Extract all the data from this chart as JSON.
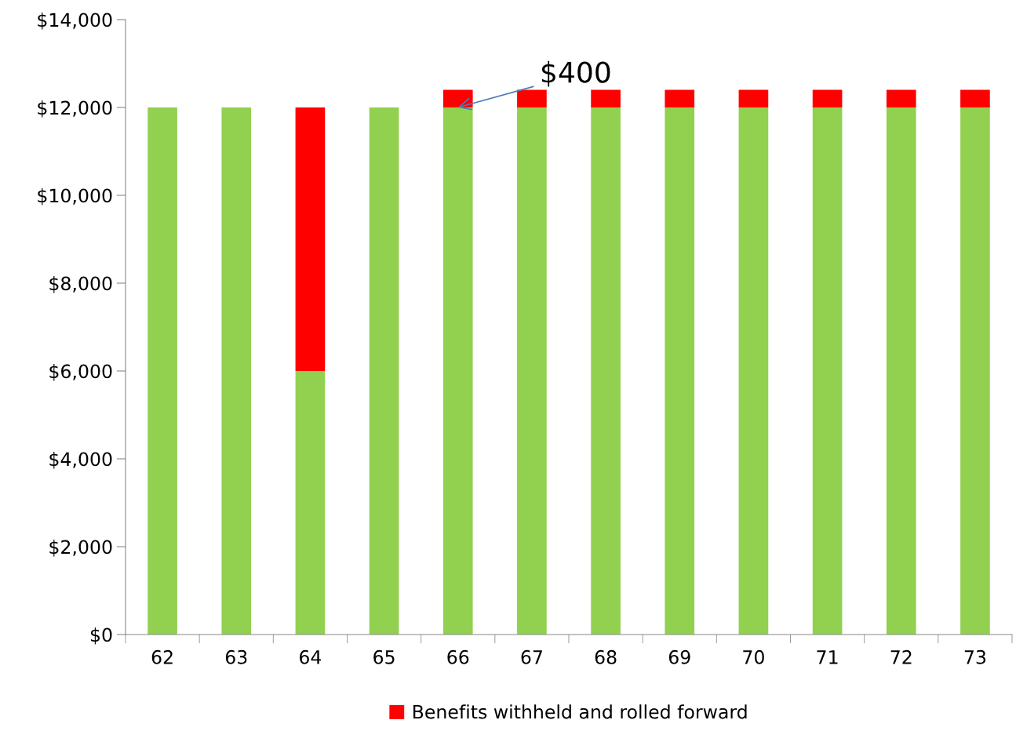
{
  "chart_data": {
    "type": "bar",
    "stacked": true,
    "categories": [
      "62",
      "63",
      "64",
      "65",
      "66",
      "67",
      "68",
      "69",
      "70",
      "71",
      "72",
      "73"
    ],
    "series": [
      {
        "color": "#92d050",
        "values": [
          12000,
          12000,
          6000,
          12000,
          12000,
          12000,
          12000,
          12000,
          12000,
          12000,
          12000,
          12000
        ]
      },
      {
        "name": "Benefits withheld and rolled forward",
        "color": "#ff0000",
        "values": [
          null,
          null,
          6000,
          null,
          400,
          400,
          400,
          400,
          400,
          400,
          400,
          400
        ]
      }
    ],
    "ylim": [
      0,
      14000
    ],
    "yticks": [
      {
        "value": 0,
        "label": "$0"
      },
      {
        "value": 2000,
        "label": "$2,000"
      },
      {
        "value": 4000,
        "label": "$4,000"
      },
      {
        "value": 6000,
        "label": "$6,000"
      },
      {
        "value": 8000,
        "label": "$8,000"
      },
      {
        "value": 10000,
        "label": "$10,000"
      },
      {
        "value": 12000,
        "label": "$12,000"
      },
      {
        "value": 14000,
        "label": "$14,000"
      }
    ],
    "annotations": [
      {
        "text": "$400",
        "x": "66",
        "y": 12000
      }
    ],
    "grid": false,
    "legend": "bottom"
  }
}
